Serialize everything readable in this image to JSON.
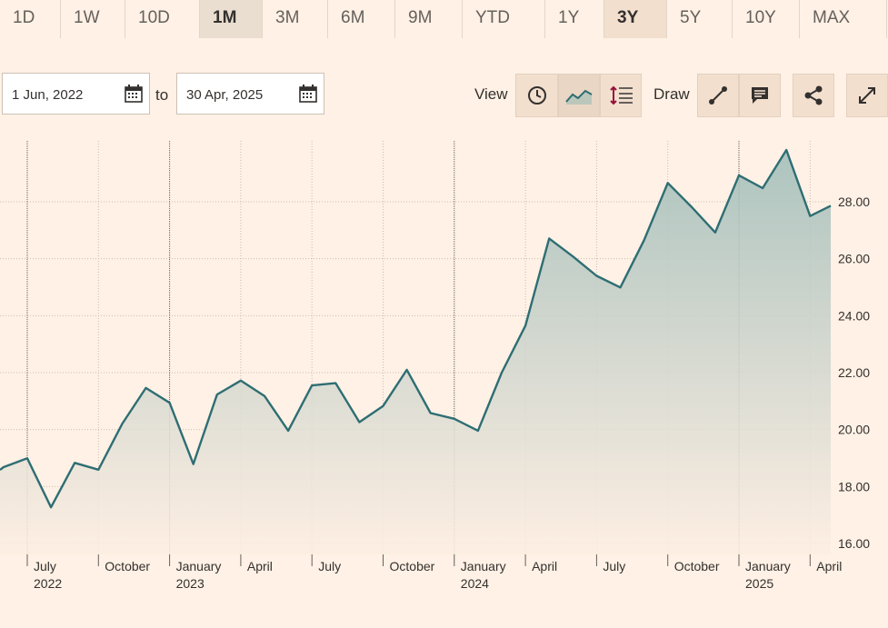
{
  "ranges": [
    {
      "label": "1D",
      "state": "normal"
    },
    {
      "label": "1W",
      "state": "normal"
    },
    {
      "label": "10D",
      "state": "normal"
    },
    {
      "label": "1M",
      "state": "active"
    },
    {
      "label": "3M",
      "state": "normal"
    },
    {
      "label": "6M",
      "state": "normal"
    },
    {
      "label": "9M",
      "state": "normal"
    },
    {
      "label": "YTD",
      "state": "normal"
    },
    {
      "label": "1Y",
      "state": "normal"
    },
    {
      "label": "3Y",
      "state": "selected"
    },
    {
      "label": "5Y",
      "state": "normal"
    },
    {
      "label": "10Y",
      "state": "normal"
    },
    {
      "label": "MAX",
      "state": "normal"
    }
  ],
  "date_from": "1 Jun, 2022",
  "date_to": "30 Apr, 2025",
  "to_label": "to",
  "view_label": "View",
  "draw_label": "Draw",
  "icons": {
    "calendar": "calendar-icon",
    "clock": "clock-icon",
    "mountain": "mountain-chart-icon",
    "indicators": "indicators-icon",
    "line_tool": "line-draw-icon",
    "comment": "comment-icon",
    "share": "share-icon",
    "expand": "expand-icon"
  },
  "colors": {
    "line": "#2e6e73",
    "fill_top": "#9fbcb8",
    "fill_bottom": "#fdeee2",
    "background": "#fff1e5"
  },
  "chart_data": {
    "type": "area",
    "x": [
      "2022-06",
      "2022-07",
      "2022-08",
      "2022-09",
      "2022-10",
      "2022-11",
      "2022-12",
      "2023-01",
      "2023-02",
      "2023-03",
      "2023-04",
      "2023-05",
      "2023-06",
      "2023-07",
      "2023-08",
      "2023-09",
      "2023-10",
      "2023-11",
      "2023-12",
      "2024-01",
      "2024-02",
      "2024-03",
      "2024-04",
      "2024-05",
      "2024-06",
      "2024-07",
      "2024-08",
      "2024-09",
      "2024-10",
      "2024-11",
      "2024-12",
      "2025-01",
      "2025-02",
      "2025-03",
      "2025-04"
    ],
    "values": [
      18.68,
      18.99,
      17.27,
      18.83,
      18.59,
      20.2,
      21.46,
      20.94,
      18.79,
      21.23,
      21.72,
      21.18,
      19.96,
      21.55,
      21.63,
      20.26,
      20.83,
      22.1,
      20.58,
      20.38,
      19.96,
      22.0,
      23.65,
      26.71,
      26.08,
      25.4,
      24.99,
      26.65,
      28.66,
      27.82,
      26.92,
      28.93,
      28.48,
      29.82,
      27.5
    ],
    "last_point": {
      "x": "2025-04-30",
      "value": 27.86
    },
    "ylim": [
      15.6,
      30.2
    ],
    "y_ticks": [
      "16.00",
      "18.00",
      "20.00",
      "22.00",
      "24.00",
      "26.00",
      "28.00"
    ],
    "x_ticks": [
      {
        "label": "July",
        "year": "2022",
        "at": "2022-07"
      },
      {
        "label": "October",
        "year": "",
        "at": "2022-10"
      },
      {
        "label": "January",
        "year": "2023",
        "at": "2023-01"
      },
      {
        "label": "April",
        "year": "",
        "at": "2023-04"
      },
      {
        "label": "July",
        "year": "",
        "at": "2023-07"
      },
      {
        "label": "October",
        "year": "",
        "at": "2023-10"
      },
      {
        "label": "January",
        "year": "2024",
        "at": "2024-01"
      },
      {
        "label": "April",
        "year": "",
        "at": "2024-04"
      },
      {
        "label": "July",
        "year": "",
        "at": "2024-07"
      },
      {
        "label": "October",
        "year": "",
        "at": "2024-10"
      },
      {
        "label": "January",
        "year": "2025",
        "at": "2025-01"
      },
      {
        "label": "April",
        "year": "",
        "at": "2025-04"
      }
    ],
    "grid": true
  }
}
